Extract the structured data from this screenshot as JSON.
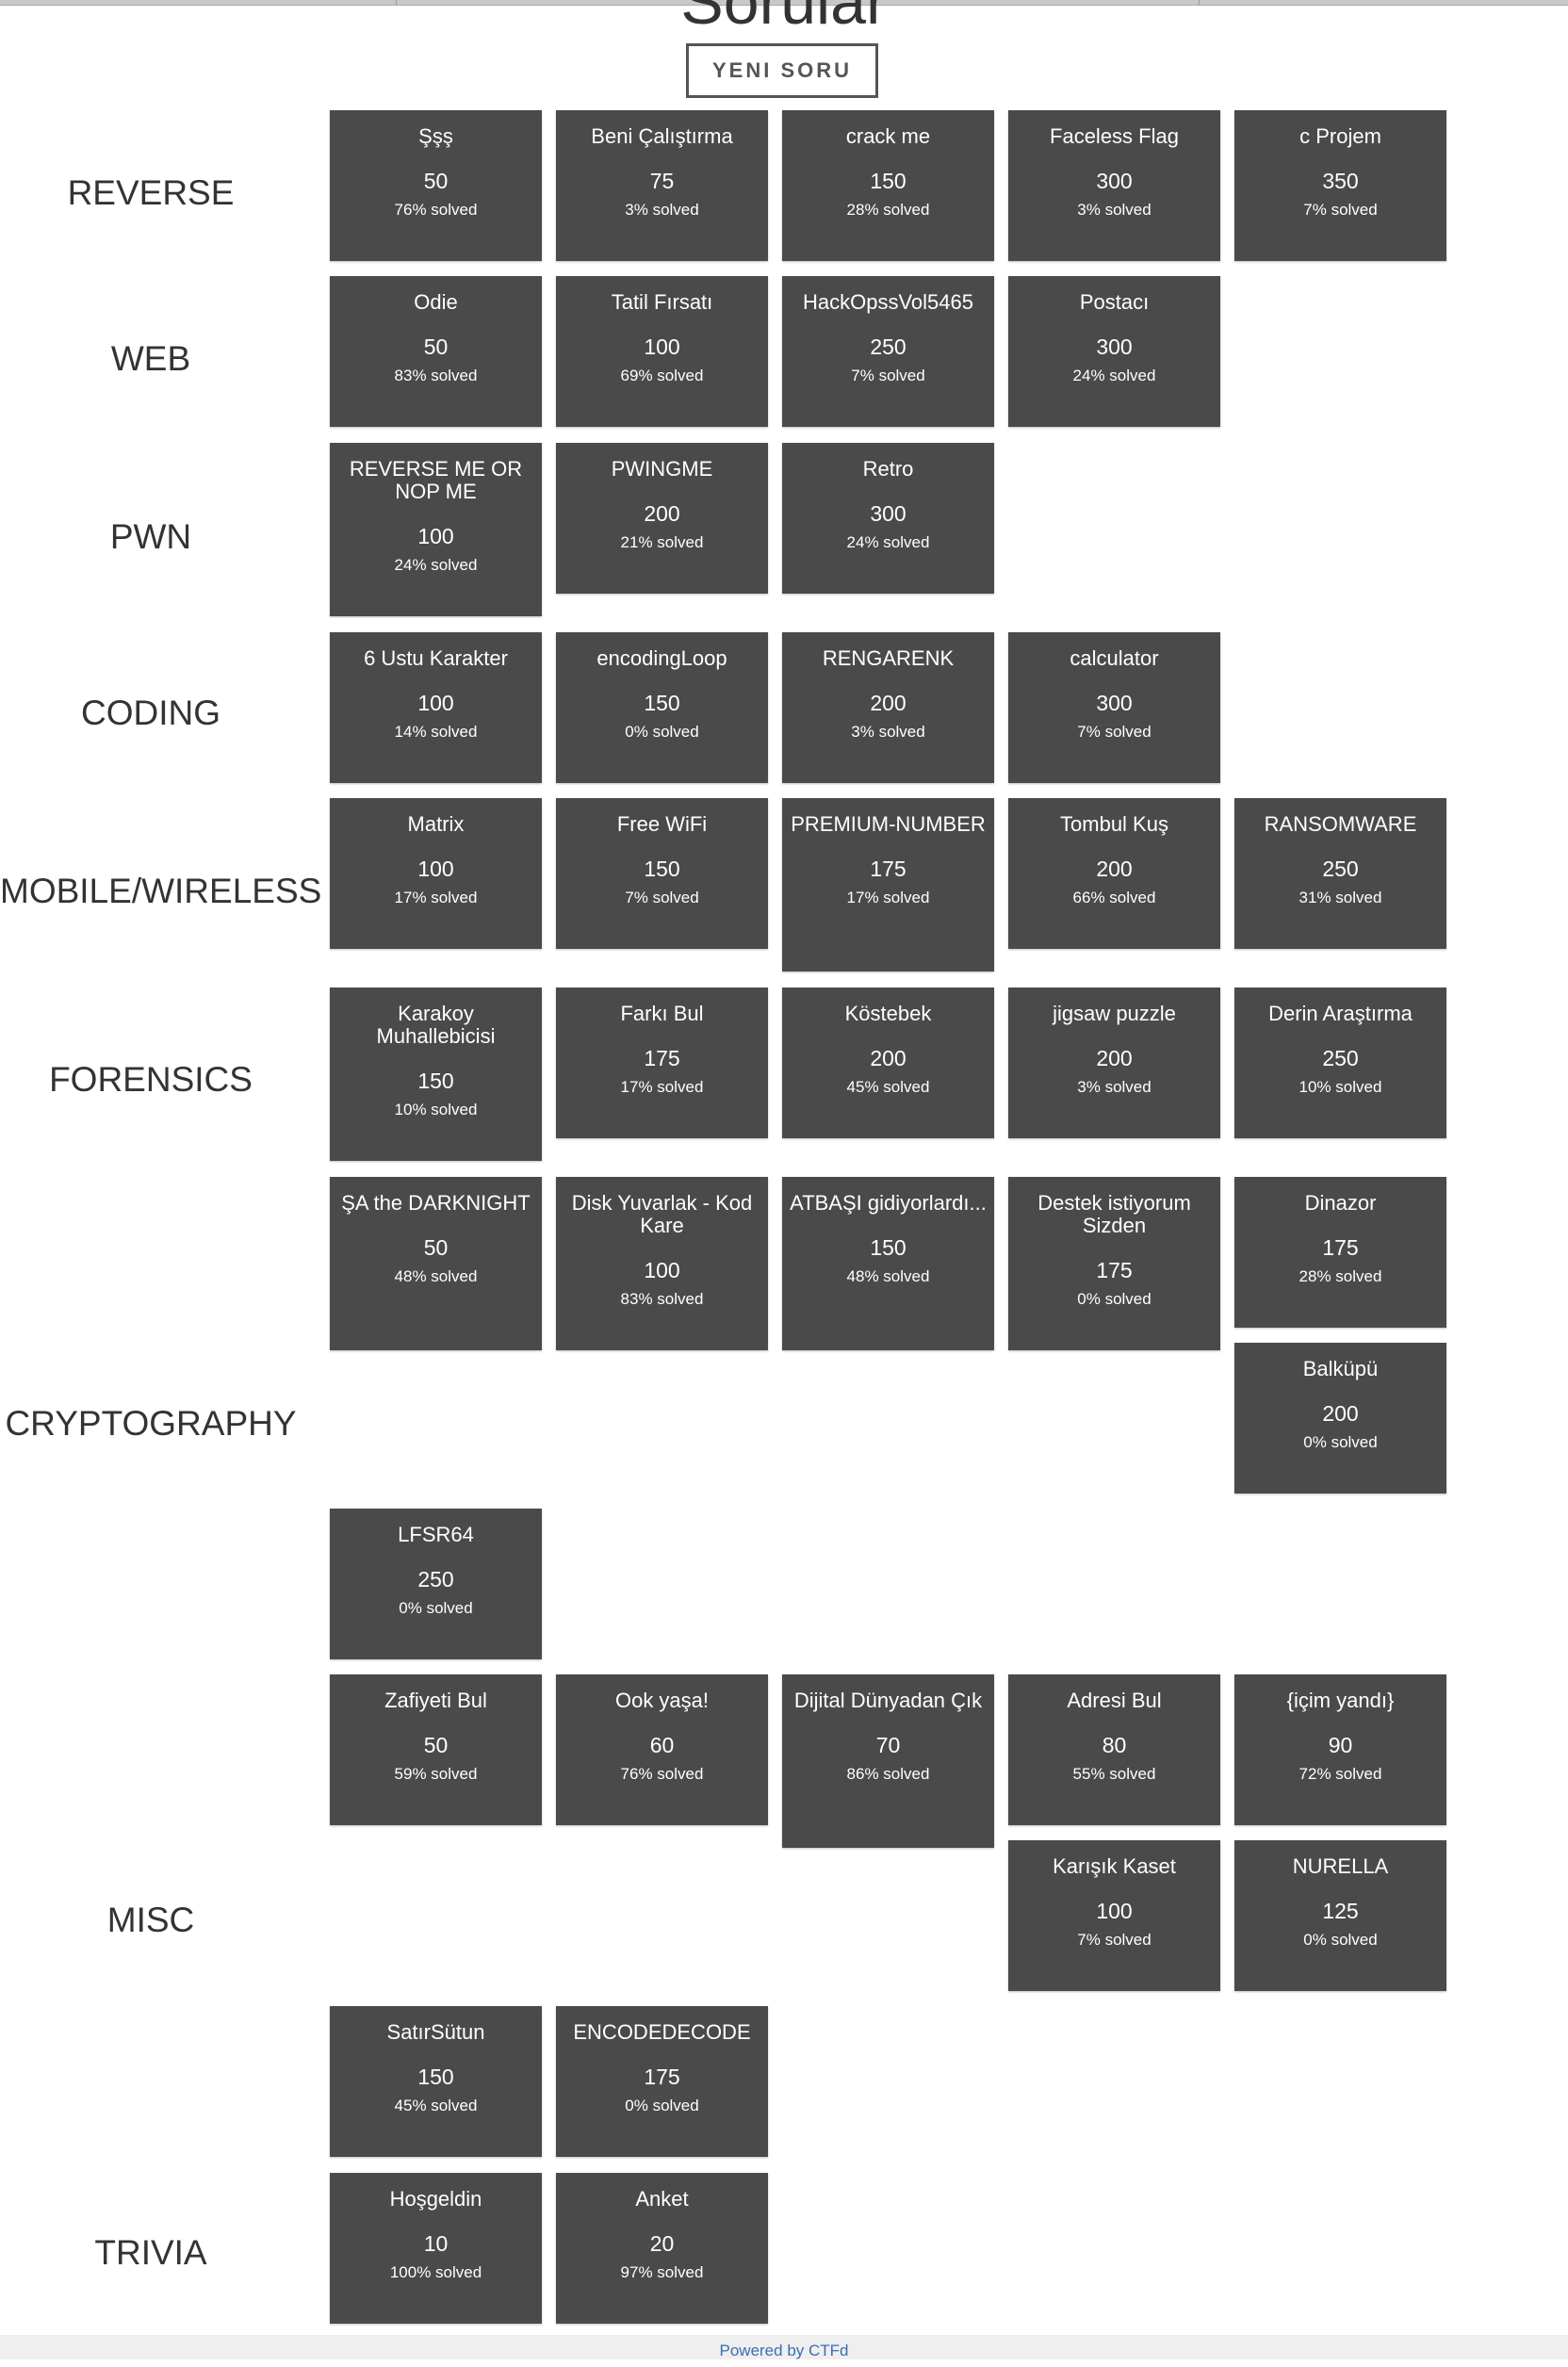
{
  "page": {
    "title": "Sorular",
    "new_button": "YENI SORU"
  },
  "footer": {
    "powered_by": "Powered by CTFd"
  },
  "categories": [
    {
      "id": "reverse",
      "label": "REVERSE"
    },
    {
      "id": "web",
      "label": "WEB"
    },
    {
      "id": "pwn",
      "label": "PWN"
    },
    {
      "id": "coding",
      "label": "CODING"
    },
    {
      "id": "mobile",
      "label": "MOBILE/WIRELESS"
    },
    {
      "id": "forensics",
      "label": "FORENSICS"
    },
    {
      "id": "crypto",
      "label": "CRYPTOGRAPHY"
    },
    {
      "id": "misc",
      "label": "MISC"
    },
    {
      "id": "trivia",
      "label": "TRIVIA"
    }
  ],
  "challenges": [
    {
      "cat": "reverse",
      "name": "Şşş",
      "points": "50",
      "solved": "76% solved"
    },
    {
      "cat": "reverse",
      "name": "Beni  Çalıştırma",
      "points": "75",
      "solved": "3% solved"
    },
    {
      "cat": "reverse",
      "name": "crack me",
      "points": "150",
      "solved": "28% solved"
    },
    {
      "cat": "reverse",
      "name": "Faceless Flag",
      "points": "300",
      "solved": "3% solved"
    },
    {
      "cat": "reverse",
      "name": "c Projem",
      "points": "350",
      "solved": "7% solved"
    },
    {
      "cat": "web",
      "name": "Odie",
      "points": "50",
      "solved": "83% solved"
    },
    {
      "cat": "web",
      "name": "Tatil Fırsatı",
      "points": "100",
      "solved": "69% solved"
    },
    {
      "cat": "web",
      "name": "HackOpssVol5465",
      "points": "250",
      "solved": "7% solved"
    },
    {
      "cat": "web",
      "name": "Postacı",
      "points": "300",
      "solved": "24% solved"
    },
    {
      "cat": "pwn",
      "name": "REVERSE ME OR NOP ME",
      "points": "100",
      "solved": "24% solved"
    },
    {
      "cat": "pwn",
      "name": "PWINGME",
      "points": "200",
      "solved": "21% solved"
    },
    {
      "cat": "pwn",
      "name": "Retro",
      "points": "300",
      "solved": "24% solved"
    },
    {
      "cat": "coding",
      "name": "6 Ustu Karakter",
      "points": "100",
      "solved": "14% solved"
    },
    {
      "cat": "coding",
      "name": "encodingLoop",
      "points": "150",
      "solved": "0% solved"
    },
    {
      "cat": "coding",
      "name": "RENGARENK",
      "points": "200",
      "solved": "3% solved"
    },
    {
      "cat": "coding",
      "name": "calculator",
      "points": "300",
      "solved": "7% solved"
    },
    {
      "cat": "mobile",
      "name": "Matrix",
      "points": "100",
      "solved": "17% solved"
    },
    {
      "cat": "mobile",
      "name": "Free WiFi",
      "points": "150",
      "solved": "7% solved"
    },
    {
      "cat": "mobile",
      "name": "PREMIUM-NUMBER",
      "points": "175",
      "solved": "17% solved"
    },
    {
      "cat": "mobile",
      "name": "Tombul Kuş",
      "points": "200",
      "solved": "66% solved"
    },
    {
      "cat": "mobile",
      "name": "RANSOMWARE",
      "points": "250",
      "solved": "31% solved"
    },
    {
      "cat": "forensics",
      "name": "Karakoy Muhallebicisi",
      "points": "150",
      "solved": "10% solved"
    },
    {
      "cat": "forensics",
      "name": "Farkı Bul",
      "points": "175",
      "solved": "17% solved"
    },
    {
      "cat": "forensics",
      "name": "Köstebek",
      "points": "200",
      "solved": "45% solved"
    },
    {
      "cat": "forensics",
      "name": "jigsaw puzzle",
      "points": "200",
      "solved": "3% solved"
    },
    {
      "cat": "forensics",
      "name": "Derin Araştırma",
      "points": "250",
      "solved": "10% solved"
    },
    {
      "cat": "crypto",
      "name": "ŞA the DARKNIGHT",
      "points": "50",
      "solved": "48% solved"
    },
    {
      "cat": "crypto",
      "name": "Disk Yuvarlak - Kod Kare",
      "points": "100",
      "solved": "83% solved"
    },
    {
      "cat": "crypto",
      "name": "ATBAŞI gidiyorlardı...",
      "points": "150",
      "solved": "48% solved"
    },
    {
      "cat": "crypto",
      "name": "Destek istiyorum Sizden",
      "points": "175",
      "solved": "0% solved"
    },
    {
      "cat": "crypto",
      "name": "Dinazor",
      "points": "175",
      "solved": "28% solved"
    },
    {
      "cat": "crypto",
      "name": "Balküpü",
      "points": "200",
      "solved": "0% solved"
    },
    {
      "cat": "crypto",
      "name": "LFSR64",
      "points": "250",
      "solved": "0% solved"
    },
    {
      "cat": "misc",
      "name": "Zafiyeti Bul",
      "points": "50",
      "solved": "59% solved"
    },
    {
      "cat": "misc",
      "name": "Ook yaşa!",
      "points": "60",
      "solved": "76% solved"
    },
    {
      "cat": "misc",
      "name": "Dijital Dünyadan Çık",
      "points": "70",
      "solved": "86% solved"
    },
    {
      "cat": "misc",
      "name": "Adresi Bul",
      "points": "80",
      "solved": "55% solved"
    },
    {
      "cat": "misc",
      "name": "{içim yandı}",
      "points": "90",
      "solved": "72% solved"
    },
    {
      "cat": "misc",
      "name": "Karışık Kaset",
      "points": "100",
      "solved": "7% solved"
    },
    {
      "cat": "misc",
      "name": "NURELLA",
      "points": "125",
      "solved": "0% solved"
    },
    {
      "cat": "misc",
      "name": "SatırSütun",
      "points": "150",
      "solved": "45% solved"
    },
    {
      "cat": "misc",
      "name": "ENCODEDECODE",
      "points": "175",
      "solved": "0% solved"
    },
    {
      "cat": "trivia",
      "name": "Hoşgeldin",
      "points": "10",
      "solved": "100% solved"
    },
    {
      "cat": "trivia",
      "name": "Anket",
      "points": "20",
      "solved": "97% solved"
    }
  ]
}
